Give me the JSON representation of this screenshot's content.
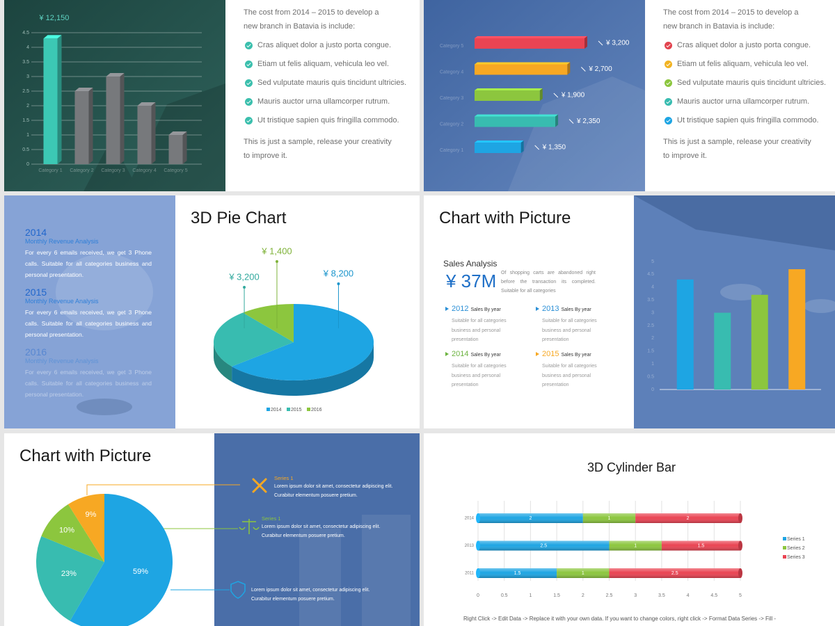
{
  "slides": [
    {
      "chart": {
        "type": "bar3d",
        "categories": [
          "Category 1",
          "Category 2",
          "Category 3",
          "Category 4",
          "Category 5"
        ],
        "values": [
          4.3,
          2.5,
          3,
          2,
          1
        ],
        "colors": [
          "#3cc8b4",
          "#77797c",
          "#77797c",
          "#77797c",
          "#77797c"
        ],
        "ylim": [
          0,
          4.5
        ],
        "yticks": [
          0,
          0.5,
          1,
          1.5,
          2,
          2.5,
          3,
          3.5,
          4,
          4.5
        ],
        "grid": true,
        "annotation": "¥ 12,150"
      },
      "intro": "The cost from 2014 – 2015 to develop a new branch in Batavia is include:",
      "bullets": [
        "Cras aliquet dolor a justo porta congue.",
        "Etiam ut felis aliquam, vehicula leo vel.",
        "Sed vulputate mauris quis tincidunt ultricies.",
        "Mauris auctor urna ullamcorper rutrum.",
        "Ut tristique sapien quis fringilla commodo."
      ],
      "check_colors": [
        "#3bbfad",
        "#3bbfad",
        "#3bbfad",
        "#3bbfad",
        "#3bbfad"
      ],
      "outro": "This is just a sample, release your creativity to improve it."
    },
    {
      "chart": {
        "type": "hbar3d",
        "categories": [
          "Category 5",
          "Category 4",
          "Category 3",
          "Category 2",
          "Category 1"
        ],
        "values": [
          3200,
          2700,
          1900,
          2350,
          1350
        ],
        "value_labels": [
          "¥ 3,200",
          "¥ 2,700",
          "¥ 1,900",
          "¥ 2,350",
          "¥ 1,350"
        ],
        "colors": [
          "#ea4453",
          "#f7a823",
          "#8cc63e",
          "#38bcb0",
          "#1ea5e3"
        ]
      },
      "intro": "The cost from 2014 – 2015 to develop a new branch in Batavia is include:",
      "bullets": [
        "Cras aliquet dolor a justo porta congue.",
        "Etiam ut felis aliquam, vehicula leo vel.",
        "Sed vulputate mauris quis tincidunt ultricies.",
        "Mauris auctor urna ullamcorper rutrum.",
        "Ut tristique sapien quis fringilla commodo."
      ],
      "check_colors": [
        "#e2444f",
        "#f2b322",
        "#8cc63e",
        "#38bcb0",
        "#1ea5e3"
      ],
      "outro": "This is just a sample, release your creativity to improve it."
    },
    {
      "title": "3D Pie Chart",
      "blocks": [
        {
          "year": "2014",
          "subtitle": "Monthly Revenue Analysis",
          "text": "For every 6 emails received, we get 3 Phone calls. Suitable for all categories business and personal presentation."
        },
        {
          "year": "2015",
          "subtitle": "Monthly Revenue Analysis",
          "text": "For every 6 emails received, we get 3 Phone calls. Suitable for all categories business and personal presentation."
        },
        {
          "year": "2016",
          "subtitle": "Monthly Revenue Analysis",
          "text": "For every 6 emails received, we get 3 Phone calls. Suitable for all categories business and personal presentation."
        }
      ],
      "chart": {
        "type": "pie3d",
        "categories": [
          "2014",
          "2015",
          "2016"
        ],
        "values": [
          8200,
          3200,
          1400
        ],
        "value_labels": [
          "¥ 8,200",
          "¥ 3,200",
          "¥ 1,400"
        ],
        "colors": [
          "#1ea5e3",
          "#38bcb0",
          "#8cc63e"
        ],
        "legend": "bottom"
      }
    },
    {
      "title": "Chart with Picture",
      "kpi_label": "Sales Analysis",
      "kpi": "¥ 37M",
      "kpi_text": "Of shopping carts are abandoned right before the transaction its completed. Suitable for all categories",
      "items": [
        {
          "year": "2012",
          "label": "Sales By year",
          "text": "Suitable for all categories business and personal presentation",
          "color": "#2a8fd6"
        },
        {
          "year": "2013",
          "label": "Sales By year",
          "text": "Suitable for all categories business and personal presentation",
          "color": "#2a8fd6"
        },
        {
          "year": "2014",
          "label": "Sales By year",
          "text": "Suitable for all categories business and personal presentation",
          "color": "#6cb33f"
        },
        {
          "year": "2015",
          "label": "Sales By year",
          "text": "Suitable for all categories business and personal presentation",
          "color": "#f7a823"
        }
      ],
      "chart": {
        "type": "bar",
        "categories": [
          null,
          null,
          null,
          null
        ],
        "values": [
          4.3,
          3,
          3.7,
          4.7
        ],
        "colors": [
          "#1ea5e3",
          "#38bcb0",
          "#8cc63e",
          "#f7a823"
        ],
        "ylim": [
          0,
          5
        ],
        "yticks": [
          0,
          0.5,
          1,
          1.5,
          2,
          2.5,
          3,
          3.5,
          4,
          4.5,
          5
        ]
      }
    },
    {
      "title": "Chart with Picture",
      "chart": {
        "type": "pie",
        "values": [
          59,
          23,
          10,
          9
        ],
        "value_labels": [
          "59%",
          "23%",
          "10%",
          "9%"
        ],
        "colors": [
          "#1ea5e3",
          "#38bcb0",
          "#8cc63e",
          "#f7a823"
        ]
      },
      "items": [
        {
          "label": "Series 1",
          "text": "Lorem ipsum dolor sit amet, consectetur adipiscing elit. Curabitur elementum posuere pretium.",
          "color": "#f7a823"
        },
        {
          "label": "Series 1",
          "text": "Lorem ipsum dolor sit amet, consectetur adipiscing elit. Curabitur elementum posuere pretium.",
          "color": "#8cc63e"
        },
        {
          "text": "Lorem ipsum dolor sit amet, consectetur adipiscing elit. Curabitur elementum posuere pretium.",
          "color": "#1ea5e3"
        }
      ]
    },
    {
      "title": "3D Cylinder Bar",
      "chart": {
        "type": "stacked_hbar",
        "categories": [
          "2014",
          "2013",
          "2011"
        ],
        "series": [
          {
            "name": "Series 1",
            "color": "#1ea5e3",
            "values": [
              2,
              2.5,
              1.5
            ]
          },
          {
            "name": "Series 2",
            "color": "#8cc63e",
            "values": [
              1,
              1,
              1
            ]
          },
          {
            "name": "Series 3",
            "color": "#ea4453",
            "values": [
              2,
              1.5,
              2.5
            ]
          }
        ],
        "xlim": [
          0,
          5
        ],
        "xticks": [
          0,
          0.5,
          1,
          1.5,
          2,
          2.5,
          3,
          3.5,
          4,
          4.5,
          5
        ],
        "grid": true,
        "legend": "right"
      },
      "footer": "Right Click -> Edit Data -> Replace it with your own data. If you want to change colors, right click -> Format Data Series -> Fill -"
    }
  ]
}
